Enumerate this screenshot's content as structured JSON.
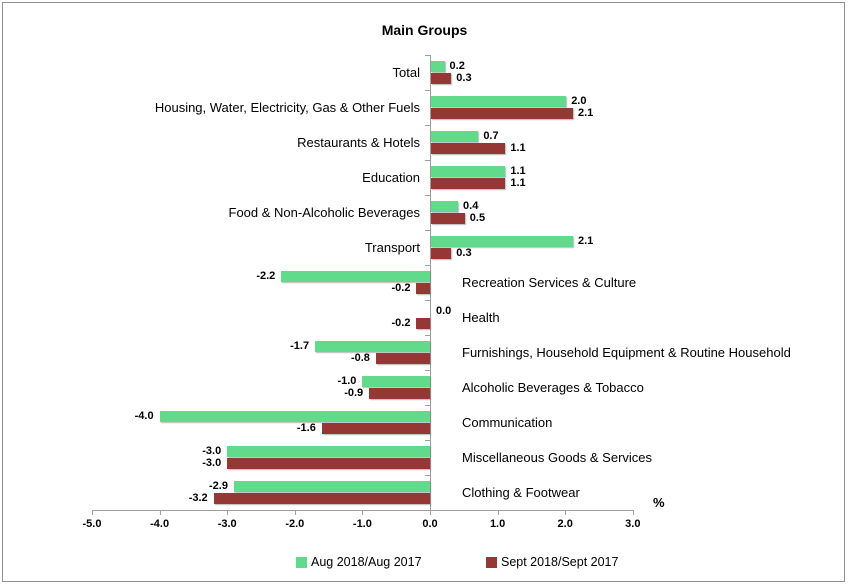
{
  "title": "Main Groups",
  "chart_data": {
    "type": "bar",
    "orientation": "horizontal",
    "title": "Main Groups",
    "xlabel": "%",
    "xlim": [
      -5.0,
      3.0
    ],
    "x_tick_labels": [
      "-5.0",
      "-4.0",
      "-3.0",
      "-2.0",
      "-1.0",
      "0.0",
      "1.0",
      "2.0",
      "3.0"
    ],
    "grid": false,
    "legend_position": "bottom",
    "value_label_decimals": 1,
    "categories": [
      "Total",
      "Housing, Water, Electricity, Gas & Other Fuels",
      "Restaurants & Hotels",
      "Education",
      "Food & Non-Alcoholic Beverages",
      "Transport",
      "Recreation Services & Culture",
      "Health",
      "Furnishings, Household Equipment & Routine Household",
      "Alcoholic Beverages & Tobacco",
      "Communication",
      "Miscellaneous Goods & Services",
      "Clothing & Footwear"
    ],
    "series": [
      {
        "name": "Aug 2018/Aug 2017",
        "color": "#62DA8B",
        "values": [
          0.2,
          2.0,
          0.7,
          1.1,
          0.4,
          2.1,
          -2.2,
          0.0,
          -1.7,
          -1.0,
          -4.0,
          -3.0,
          -2.9
        ]
      },
      {
        "name": "Sept 2018/Sept 2017",
        "color": "#953734",
        "values": [
          0.3,
          2.1,
          1.1,
          1.1,
          0.5,
          0.3,
          -0.2,
          -0.2,
          -0.8,
          -0.9,
          -1.6,
          -3.0,
          -3.2
        ]
      }
    ],
    "axis_color": "#9d9d9d"
  },
  "legend": {
    "items": [
      {
        "label": "Aug 2018/Aug 2017",
        "color": "#62DA8B"
      },
      {
        "label": "Sept 2018/Sept 2017",
        "color": "#953734"
      }
    ]
  }
}
